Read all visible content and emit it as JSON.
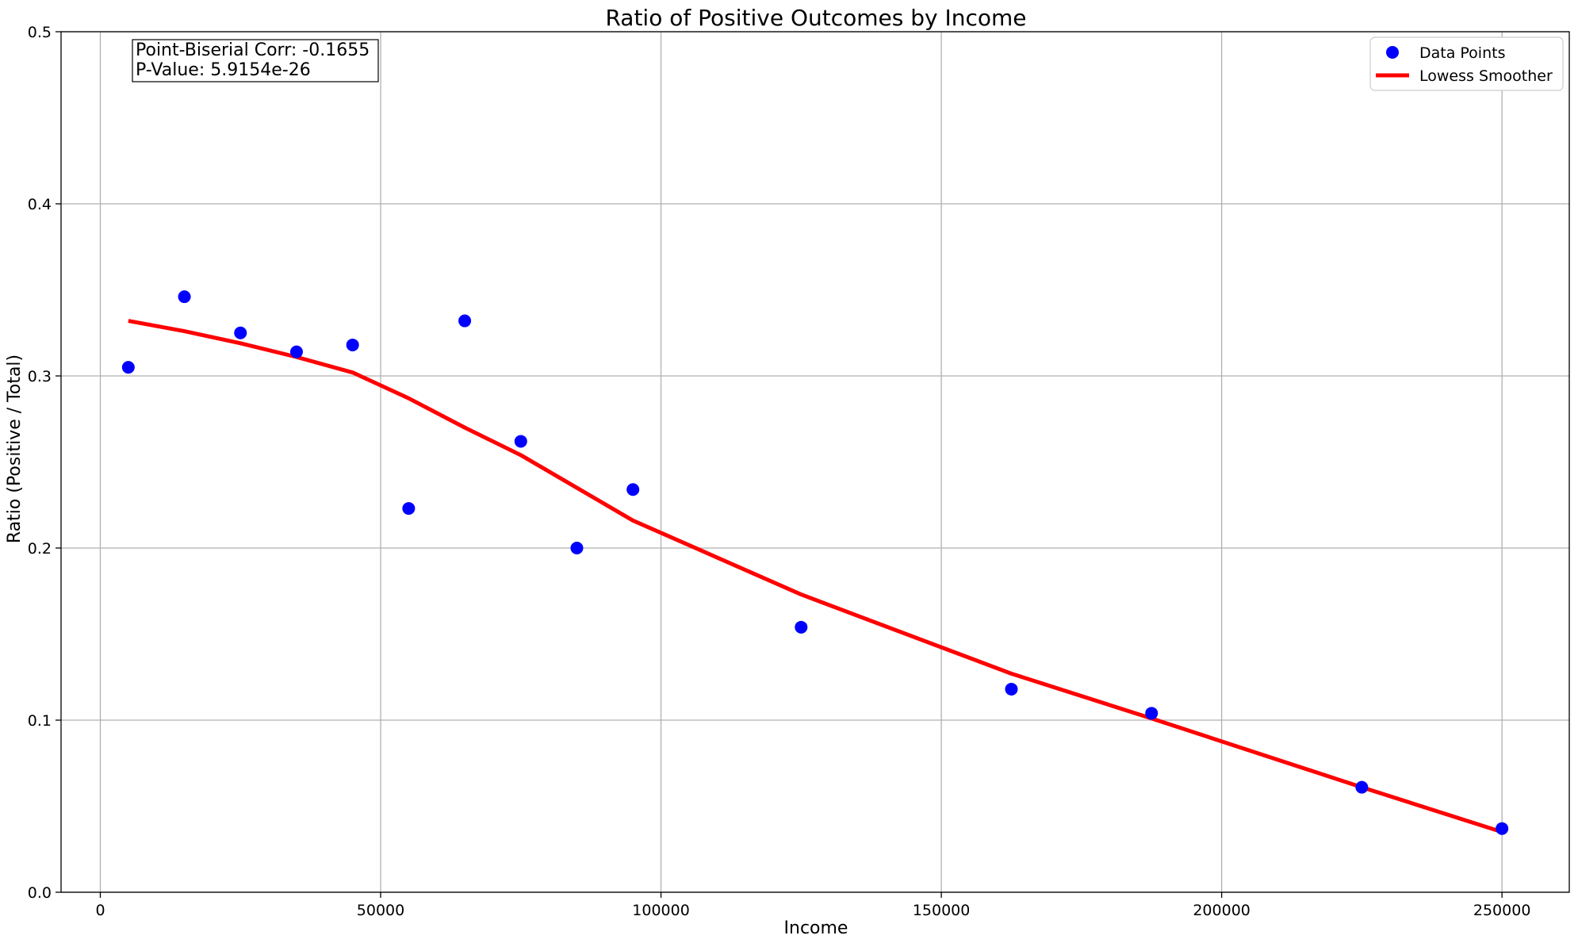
{
  "chart_data": {
    "type": "scatter",
    "title": "Ratio of Positive Outcomes by Income",
    "xlabel": "Income",
    "ylabel": "Ratio (Positive / Total)",
    "xlim": [
      -7000,
      262000
    ],
    "ylim": [
      0,
      0.5
    ],
    "xticks": [
      0,
      50000,
      100000,
      150000,
      200000,
      250000
    ],
    "xtick_labels": [
      "0",
      "50000",
      "100000",
      "150000",
      "200000",
      "250000"
    ],
    "yticks": [
      0.0,
      0.1,
      0.2,
      0.3,
      0.4,
      0.5
    ],
    "ytick_labels": [
      "0.0",
      "0.1",
      "0.2",
      "0.3",
      "0.4",
      "0.5"
    ],
    "grid": true,
    "legend_position": "top-right",
    "annotation": {
      "line1": "Point-Biserial Corr: -0.1655",
      "line2": "P-Value: 5.9154e-26",
      "position": "top-left"
    },
    "series": [
      {
        "name": "Data Points",
        "type": "scatter",
        "color": "#0000ff",
        "x": [
          5000,
          15000,
          25000,
          35000,
          45000,
          55000,
          65000,
          75000,
          85000,
          95000,
          125000,
          162500,
          187500,
          225000,
          250000
        ],
        "y": [
          0.305,
          0.346,
          0.325,
          0.314,
          0.318,
          0.223,
          0.332,
          0.262,
          0.2,
          0.234,
          0.154,
          0.118,
          0.104,
          0.061,
          0.037
        ]
      },
      {
        "name": "Lowess Smoother",
        "type": "line",
        "color": "#ff0000",
        "x": [
          5000,
          15000,
          25000,
          35000,
          45000,
          55000,
          65000,
          75000,
          85000,
          95000,
          125000,
          162500,
          187500,
          225000,
          250000
        ],
        "y": [
          0.332,
          0.326,
          0.319,
          0.311,
          0.302,
          0.287,
          0.27,
          0.254,
          0.235,
          0.216,
          0.173,
          0.127,
          0.101,
          0.061,
          0.035
        ]
      }
    ]
  }
}
